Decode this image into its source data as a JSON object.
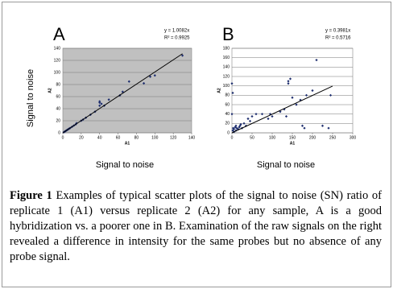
{
  "chart_data": [
    {
      "type": "scatter",
      "panel": "A",
      "xlabel": "A1",
      "ylabel": "A2",
      "equation": [
        "y = 1.0082x",
        "R² = 0.9925"
      ],
      "x": [
        1,
        2,
        3,
        4,
        5,
        6,
        7,
        8,
        10,
        12,
        14,
        15,
        20,
        22,
        25,
        30,
        35,
        40,
        40,
        40,
        42,
        45,
        50,
        62,
        65,
        72,
        88,
        95,
        100,
        130
      ],
      "values": [
        1,
        2,
        3,
        4,
        5,
        6,
        7,
        8,
        10,
        12,
        14,
        16,
        20,
        22,
        25,
        30,
        35,
        45,
        50,
        52,
        48,
        45,
        55,
        62,
        68,
        85,
        82,
        93,
        95,
        128
      ],
      "color": "#1f2f6f",
      "trendline": {
        "x": [
          0,
          130
        ],
        "y": [
          0,
          131
        ]
      },
      "xlim": [
        0,
        140
      ],
      "ylim": [
        0,
        140
      ],
      "xticks": [
        0,
        20,
        40,
        60,
        80,
        100,
        120,
        140
      ],
      "yticks": [
        0,
        20,
        40,
        60,
        80,
        100,
        120,
        140
      ],
      "grid": true,
      "background": "#c0c0c0"
    },
    {
      "type": "scatter",
      "panel": "B",
      "xlabel": "A1",
      "ylabel": "A2",
      "equation": [
        "y = 0.3981x",
        "R² = 0.5716"
      ],
      "x": [
        2,
        3,
        5,
        5,
        8,
        10,
        10,
        12,
        15,
        18,
        20,
        22,
        25,
        30,
        35,
        40,
        45,
        50,
        60,
        75,
        90,
        95,
        100,
        120,
        130,
        135,
        140,
        145,
        150,
        140,
        160,
        170,
        175,
        180,
        185,
        200,
        210,
        225,
        245,
        240,
        0,
        2,
        0
      ],
      "values": [
        5,
        10,
        2,
        8,
        12,
        5,
        15,
        10,
        8,
        12,
        15,
        18,
        10,
        20,
        15,
        30,
        25,
        35,
        40,
        40,
        30,
        40,
        35,
        45,
        50,
        35,
        105,
        115,
        75,
        110,
        60,
        70,
        15,
        10,
        80,
        90,
        155,
        15,
        80,
        10,
        105,
        85,
        40
      ],
      "color": "#1f2f6f",
      "trendline": {
        "x": [
          0,
          250
        ],
        "y": [
          0,
          99.5
        ]
      },
      "xlim": [
        0,
        300
      ],
      "ylim": [
        0,
        180
      ],
      "xticks": [
        0,
        50,
        100,
        150,
        200,
        250,
        300
      ],
      "yticks": [
        0,
        20,
        40,
        60,
        80,
        100,
        120,
        140,
        160,
        180
      ],
      "grid": true,
      "background": "#ffffff"
    }
  ],
  "figure": {
    "ylabel": "Signal to noise",
    "xlabels": [
      "Signal to noise",
      "Signal to noise"
    ]
  },
  "caption": {
    "label": "Figure 1",
    "text": "Examples of typical scatter plots of the signal to noise (SN) ratio of replicate 1 (A1) versus replicate 2 (A2) for any sample, A is a good hybridization vs. a poorer one in B. Examination of the raw signals on the right revealed a difference in intensity for the same probes but no absence of any probe signal."
  }
}
